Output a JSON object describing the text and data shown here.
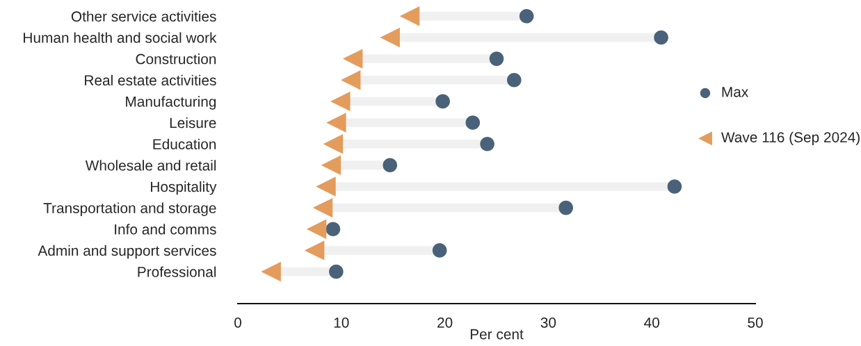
{
  "chart_data": {
    "type": "scatter",
    "orientation": "horizontal",
    "xlabel": "Per cent",
    "categories": [
      "Other service activities",
      "Human health and social work",
      "Construction",
      "Real estate activities",
      "Manufacturing",
      "Leisure",
      "Education",
      "Wholesale and retail",
      "Hospitality",
      "Transportation and storage",
      "Info and comms",
      "Admin and support services",
      "Professional"
    ],
    "series": [
      {
        "name": "Max",
        "color": "#4a6279",
        "marker": "circle",
        "values": [
          27.9,
          40.9,
          25.0,
          26.7,
          19.8,
          22.7,
          24.1,
          14.7,
          42.2,
          31.7,
          9.2,
          19.5,
          9.5
        ]
      },
      {
        "name": "Wave 116 (Sep 2024)",
        "color": "#e39c5c",
        "marker": "triangle",
        "values": [
          16.6,
          14.7,
          11.1,
          10.9,
          9.9,
          9.5,
          9.2,
          9.0,
          8.5,
          8.2,
          7.6,
          7.4,
          3.2
        ]
      }
    ],
    "xlim": [
      0,
      50
    ],
    "xticks": [
      0,
      10,
      20,
      30,
      40,
      50
    ],
    "grid": false,
    "legend": "right"
  }
}
